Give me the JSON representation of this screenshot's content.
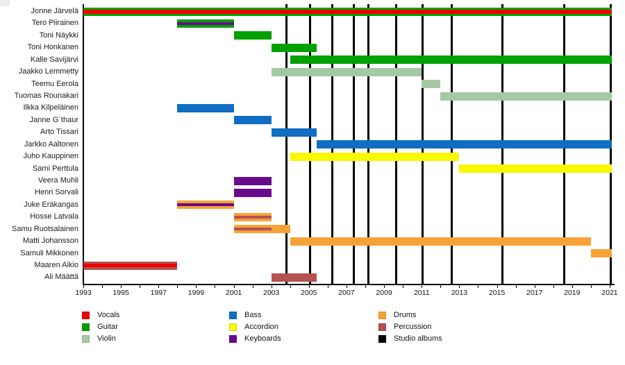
{
  "chart_data": {
    "type": "timeline",
    "x_axis": {
      "min": 1993,
      "max": 2021.26,
      "major_tick_years": [
        1993,
        1995,
        1997,
        1999,
        2001,
        2003,
        2005,
        2007,
        2009,
        2011,
        2013,
        2015,
        2017,
        2019,
        2021
      ],
      "minor_tick_step": 1,
      "grid": false
    },
    "instrument_colors": {
      "vocals": "#ee0000",
      "guitar": "#00a000",
      "violin": "#a5c8a5",
      "bass": "#0f6dc4",
      "accordion": "#f8f800",
      "keyboards": "#690c8c",
      "drums": "#f7a237",
      "percussion": "#b25252",
      "albums": "#000000"
    },
    "members": [
      {
        "name": "Jonne Järvelä",
        "bars": [
          {
            "from": 1993,
            "to": 2021.1,
            "instrument": "guitar",
            "stripe": "vocals",
            "stripe_weight": 6
          }
        ]
      },
      {
        "name": "Tero Piirainen",
        "bars": [
          {
            "from": 1998,
            "to": 2001,
            "instrument": "guitar",
            "stripe": "keyboards",
            "stripe_weight": 4
          }
        ]
      },
      {
        "name": "Toni Näykki",
        "bars": [
          {
            "from": 2001,
            "to": 2003,
            "instrument": "guitar"
          }
        ]
      },
      {
        "name": "Toni Honkanen",
        "bars": [
          {
            "from": 2003,
            "to": 2005.4,
            "instrument": "guitar"
          }
        ]
      },
      {
        "name": "Kalle Savijärvi",
        "bars": [
          {
            "from": 2004,
            "to": 2021.1,
            "instrument": "guitar"
          }
        ]
      },
      {
        "name": "Jaakko Lemmetty",
        "bars": [
          {
            "from": 2003,
            "to": 2011,
            "instrument": "violin"
          }
        ]
      },
      {
        "name": "Teemu Eerola",
        "bars": [
          {
            "from": 2011,
            "to": 2012,
            "instrument": "violin"
          }
        ]
      },
      {
        "name": "Tuomas Rounakari",
        "bars": [
          {
            "from": 2012,
            "to": 2021.1,
            "instrument": "violin"
          }
        ]
      },
      {
        "name": "Ilkka Kilpeläinen",
        "bars": [
          {
            "from": 1998,
            "to": 2001,
            "instrument": "bass"
          }
        ]
      },
      {
        "name": "Janne G`thaur",
        "bars": [
          {
            "from": 2001,
            "to": 2003,
            "instrument": "bass"
          }
        ]
      },
      {
        "name": "Arto Tissari",
        "bars": [
          {
            "from": 2003,
            "to": 2005.4,
            "instrument": "bass"
          }
        ]
      },
      {
        "name": "Jarkko Aaltonen",
        "bars": [
          {
            "from": 2005.4,
            "to": 2021.1,
            "instrument": "bass"
          }
        ]
      },
      {
        "name": "Juho Kauppinen",
        "bars": [
          {
            "from": 2004,
            "to": 2013,
            "instrument": "accordion"
          }
        ]
      },
      {
        "name": "Sami Perttula",
        "bars": [
          {
            "from": 2013,
            "to": 2021.1,
            "instrument": "accordion"
          }
        ]
      },
      {
        "name": "Veera Muhli",
        "bars": [
          {
            "from": 2001,
            "to": 2003,
            "instrument": "keyboards"
          }
        ]
      },
      {
        "name": "Henri Sorvali",
        "bars": [
          {
            "from": 2001,
            "to": 2003,
            "instrument": "keyboards"
          }
        ]
      },
      {
        "name": "Juke Eräkangas",
        "bars": [
          {
            "from": 1998,
            "to": 2001,
            "instrument": "drums",
            "stripe": "keyboards",
            "stripe_weight": 4
          }
        ]
      },
      {
        "name": "Hosse Latvala",
        "bars": [
          {
            "from": 2001,
            "to": 2003,
            "instrument": "drums",
            "stripe": "percussion",
            "stripe_weight": 4
          }
        ]
      },
      {
        "name": "Samu Ruotsalainen",
        "bars": [
          {
            "from": 2001,
            "to": 2004,
            "instrument": "drums",
            "stripe": "percussion",
            "stripe_weight": 4,
            "stripe_to": 2003
          }
        ]
      },
      {
        "name": "Matti Johansson",
        "bars": [
          {
            "from": 2004,
            "to": 2020,
            "instrument": "drums"
          }
        ]
      },
      {
        "name": "Samuli Mikkonen",
        "bars": [
          {
            "from": 2020,
            "to": 2021.1,
            "instrument": "drums"
          }
        ]
      },
      {
        "name": "Maaren Aikio",
        "bars": [
          {
            "from": 1993,
            "to": 1998,
            "instrument": "percussion",
            "stripe": "vocals",
            "stripe_weight": 5
          }
        ]
      },
      {
        "name": "Ali Määttä",
        "bars": [
          {
            "from": 2003,
            "to": 2005.4,
            "instrument": "percussion"
          }
        ]
      }
    ],
    "album_release_years": [
      2003.8,
      2005.05,
      2006.25,
      2007.4,
      2008.15,
      2009.65,
      2011.05,
      2012.6,
      2015.3,
      2018.6,
      2021.05
    ],
    "legend": [
      {
        "label": "Vocals",
        "instrument": "vocals"
      },
      {
        "label": "Guitar",
        "instrument": "guitar"
      },
      {
        "label": "Violin",
        "instrument": "violin"
      },
      {
        "label": "Bass",
        "instrument": "bass"
      },
      {
        "label": "Accordion",
        "instrument": "accordion"
      },
      {
        "label": "Keyboards",
        "instrument": "keyboards"
      },
      {
        "label": "Drums",
        "instrument": "drums"
      },
      {
        "label": "Percussion",
        "instrument": "percussion"
      },
      {
        "label": "Studio albums",
        "instrument": "albums"
      }
    ],
    "legend_columns": 3
  }
}
